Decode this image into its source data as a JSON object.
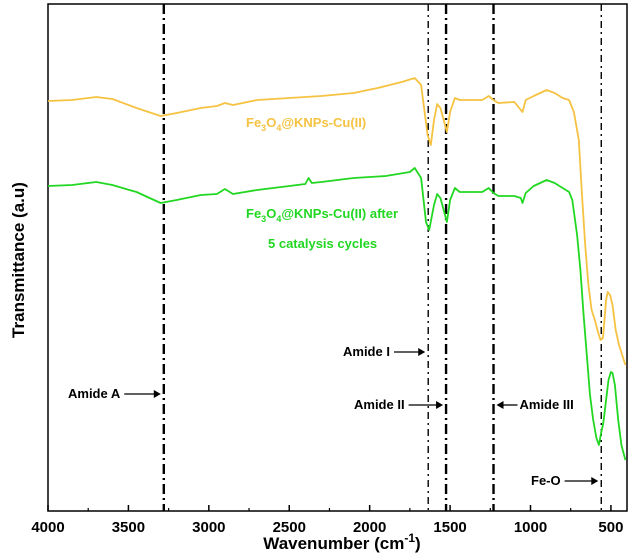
{
  "chart_data": {
    "type": "line",
    "xlabel": "Wavenumber (cm",
    "xlabel_sup": "-1",
    "xlabel_close": ")",
    "ylabel": "Transmittance (a.u)",
    "xlim": [
      4000,
      400
    ],
    "x_ticks": [
      "4000",
      "3500",
      "3000",
      "2500",
      "2000",
      "1500",
      "1000",
      "500"
    ],
    "y_ticks_shown": false,
    "series": [
      {
        "name_parts": [
          "Fe",
          "3",
          "O",
          "4",
          "@KNPs-Cu(II)"
        ],
        "color": "#f5c242",
        "points": [
          [
            4000,
            101
          ],
          [
            3850,
            100
          ],
          [
            3700,
            97
          ],
          [
            3600,
            99
          ],
          [
            3450,
            108
          ],
          [
            3300,
            116
          ],
          [
            3200,
            113
          ],
          [
            3050,
            108
          ],
          [
            2950,
            106
          ],
          [
            2900,
            103
          ],
          [
            2850,
            105
          ],
          [
            2700,
            100
          ],
          [
            2500,
            98
          ],
          [
            2300,
            96
          ],
          [
            2100,
            93
          ],
          [
            1950,
            88
          ],
          [
            1800,
            82
          ],
          [
            1720,
            78
          ],
          [
            1680,
            85
          ],
          [
            1640,
            135
          ],
          [
            1620,
            145
          ],
          [
            1600,
            120
          ],
          [
            1580,
            104
          ],
          [
            1560,
            108
          ],
          [
            1540,
            120
          ],
          [
            1520,
            132
          ],
          [
            1500,
            112
          ],
          [
            1470,
            98
          ],
          [
            1440,
            100
          ],
          [
            1300,
            100
          ],
          [
            1260,
            96
          ],
          [
            1230,
            100
          ],
          [
            1200,
            103
          ],
          [
            1100,
            102
          ],
          [
            1060,
            110
          ],
          [
            1050,
            112
          ],
          [
            1030,
            100
          ],
          [
            980,
            96
          ],
          [
            900,
            90
          ],
          [
            850,
            93
          ],
          [
            800,
            98
          ],
          [
            760,
            100
          ],
          [
            730,
            112
          ],
          [
            700,
            140
          ],
          [
            680,
            195
          ],
          [
            660,
            245
          ],
          [
            640,
            285
          ],
          [
            620,
            310
          ],
          [
            600,
            320
          ],
          [
            580,
            332
          ],
          [
            565,
            340
          ],
          [
            550,
            338
          ],
          [
            540,
            320
          ],
          [
            530,
            300
          ],
          [
            520,
            292
          ],
          [
            505,
            295
          ],
          [
            490,
            305
          ],
          [
            470,
            330
          ],
          [
            450,
            345
          ],
          [
            430,
            355
          ],
          [
            410,
            365
          ]
        ]
      },
      {
        "name_parts": [
          "Fe",
          "3",
          "O",
          "4",
          "@KNPs-Cu(II) after"
        ],
        "name_line2": "5 catalysis cycles",
        "color": "#22d722",
        "points": [
          [
            4000,
            186
          ],
          [
            3850,
            185
          ],
          [
            3700,
            182
          ],
          [
            3600,
            185
          ],
          [
            3450,
            192
          ],
          [
            3300,
            203
          ],
          [
            3200,
            200
          ],
          [
            3050,
            195
          ],
          [
            2950,
            194
          ],
          [
            2900,
            189
          ],
          [
            2850,
            194
          ],
          [
            2700,
            190
          ],
          [
            2500,
            186
          ],
          [
            2400,
            184
          ],
          [
            2380,
            178
          ],
          [
            2360,
            183
          ],
          [
            2300,
            182
          ],
          [
            2100,
            178
          ],
          [
            1900,
            176
          ],
          [
            1750,
            172
          ],
          [
            1720,
            168
          ],
          [
            1680,
            178
          ],
          [
            1650,
            222
          ],
          [
            1630,
            230
          ],
          [
            1600,
            205
          ],
          [
            1580,
            194
          ],
          [
            1560,
            198
          ],
          [
            1540,
            210
          ],
          [
            1520,
            222
          ],
          [
            1500,
            200
          ],
          [
            1470,
            188
          ],
          [
            1440,
            192
          ],
          [
            1300,
            192
          ],
          [
            1260,
            188
          ],
          [
            1230,
            193
          ],
          [
            1200,
            196
          ],
          [
            1100,
            196
          ],
          [
            1060,
            198
          ],
          [
            1050,
            203
          ],
          [
            1030,
            193
          ],
          [
            980,
            186
          ],
          [
            900,
            180
          ],
          [
            850,
            183
          ],
          [
            800,
            188
          ],
          [
            760,
            192
          ],
          [
            740,
            200
          ],
          [
            710,
            235
          ],
          [
            690,
            270
          ],
          [
            670,
            315
          ],
          [
            650,
            355
          ],
          [
            630,
            395
          ],
          [
            610,
            420
          ],
          [
            590,
            438
          ],
          [
            575,
            445
          ],
          [
            560,
            432
          ],
          [
            550,
            425
          ],
          [
            545,
            420
          ],
          [
            530,
            400
          ],
          [
            515,
            380
          ],
          [
            500,
            372
          ],
          [
            490,
            373
          ],
          [
            475,
            385
          ],
          [
            455,
            420
          ],
          [
            435,
            445
          ],
          [
            410,
            460
          ]
        ]
      }
    ],
    "reference_lines": [
      {
        "x": 3280,
        "style": "dashdot-heavy",
        "label": "Amide A",
        "label_side": "left"
      },
      {
        "x": 1636,
        "style": "dashdot-light",
        "label": "Amide I",
        "label_side": "left"
      },
      {
        "x": 1525,
        "style": "dashdot-heavy",
        "label": "Amide II",
        "label_side": "left"
      },
      {
        "x": 1230,
        "style": "dashdot-heavy",
        "label": "Amide III",
        "label_side": "right"
      },
      {
        "x": 560,
        "style": "dashdot-light",
        "label": "Fe-O",
        "label_side": "left"
      }
    ]
  }
}
